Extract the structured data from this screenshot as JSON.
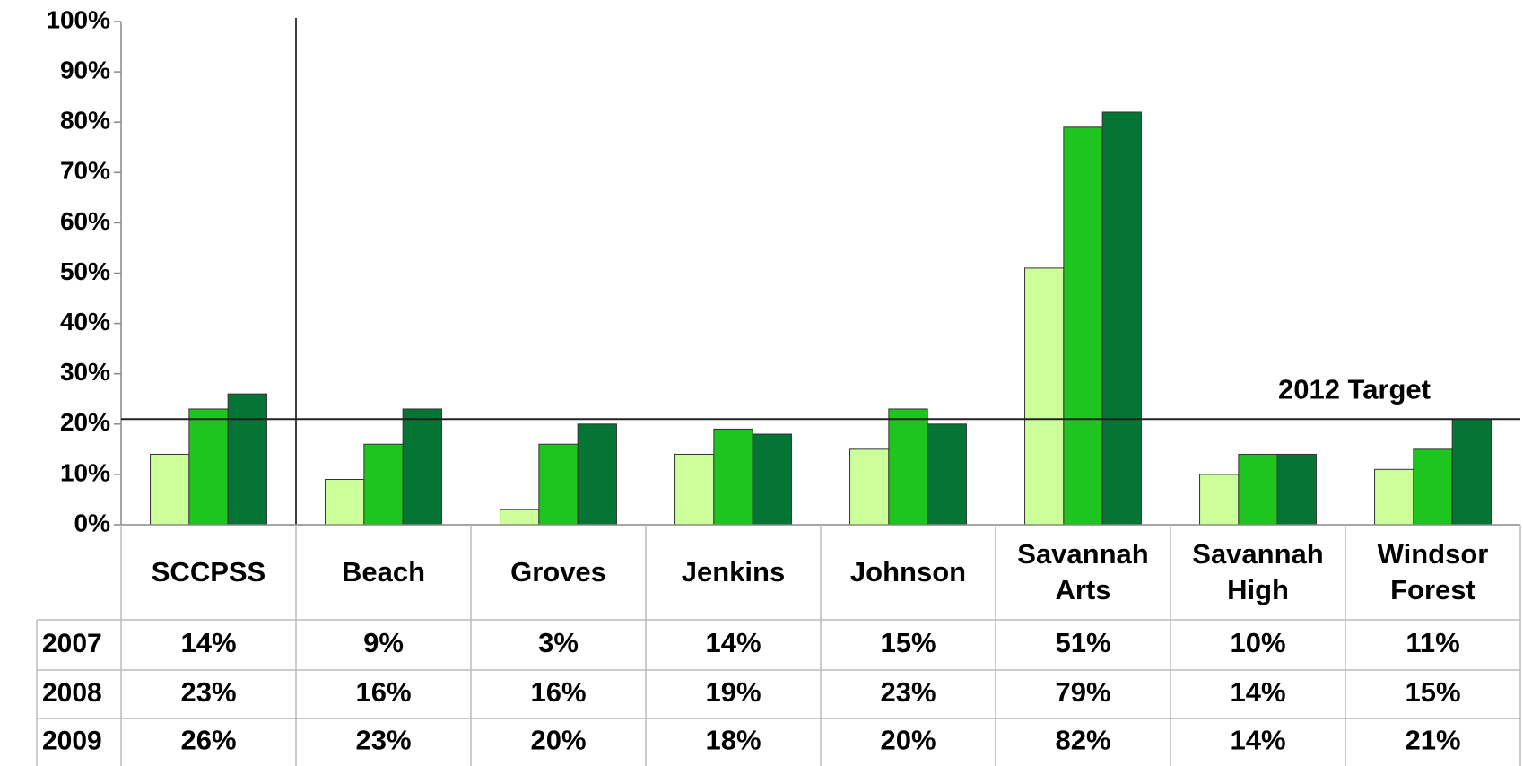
{
  "chart_data": {
    "type": "bar",
    "categories": [
      "SCCPSS",
      "Beach",
      "Groves",
      "Jenkins",
      "Johnson",
      "Savannah Arts",
      "Savannah High",
      "Windsor Forest"
    ],
    "series": [
      {
        "name": "2007",
        "color": "#ccff99",
        "values": [
          14,
          9,
          3,
          14,
          15,
          51,
          10,
          11
        ],
        "value_labels": [
          "14%",
          "9%",
          "3%",
          "14%",
          "15%",
          "51%",
          "10%",
          "11%"
        ]
      },
      {
        "name": "2008",
        "color": "#1ec51e",
        "values": [
          23,
          16,
          16,
          19,
          23,
          79,
          14,
          15
        ],
        "value_labels": [
          "23%",
          "16%",
          "16%",
          "19%",
          "23%",
          "79%",
          "14%",
          "15%"
        ]
      },
      {
        "name": "2009",
        "color": "#047535",
        "values": [
          26,
          23,
          20,
          18,
          20,
          82,
          14,
          21
        ],
        "value_labels": [
          "26%",
          "23%",
          "20%",
          "18%",
          "20%",
          "82%",
          "14%",
          "21%"
        ]
      }
    ],
    "ylim": [
      0,
      100
    ],
    "yticks": [
      {
        "value": 0,
        "label": "0%"
      },
      {
        "value": 10,
        "label": "10%"
      },
      {
        "value": 20,
        "label": "20%"
      },
      {
        "value": 30,
        "label": "30%"
      },
      {
        "value": 40,
        "label": "40%"
      },
      {
        "value": 50,
        "label": "50%"
      },
      {
        "value": 60,
        "label": "60%"
      },
      {
        "value": 70,
        "label": "70%"
      },
      {
        "value": 80,
        "label": "80%"
      },
      {
        "value": 90,
        "label": "90%"
      },
      {
        "value": 100,
        "label": "100%"
      }
    ],
    "target": {
      "label": "2012 Target",
      "value": 21
    }
  }
}
